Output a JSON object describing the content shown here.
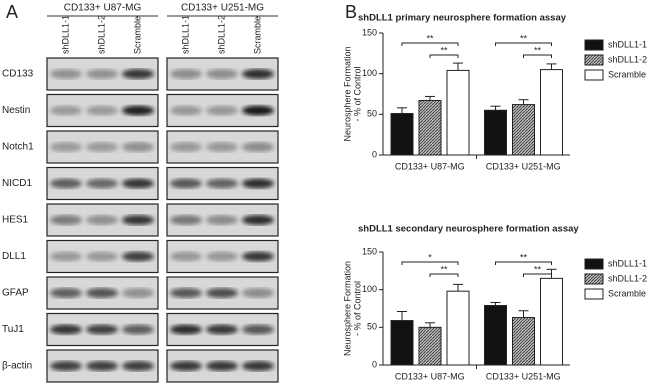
{
  "blot": {
    "letter": "A",
    "cell_lines": [
      "CD133+ U87-MG",
      "CD133+ U251-MG"
    ],
    "lanes": [
      "shDLL1-1",
      "shDLL1-2",
      "Scramble"
    ],
    "proteins": [
      "CD133",
      "Nestin",
      "Notch1",
      "NICD1",
      "HES1",
      "DLL1",
      "GFAP",
      "TuJ1",
      "β-actin"
    ]
  },
  "panel_b": {
    "letter": "B"
  },
  "chart_data": [
    {
      "type": "bar",
      "title": "shDLL1 primary neurosphere formation assay",
      "y_label": [
        "Neurosphere Formation",
        "- % of Control"
      ],
      "categories": [
        "CD133+ U87-MG",
        "CD133+ U251-MG"
      ],
      "series": [
        {
          "name": "shDLL1-1",
          "color": "#111111",
          "values": [
            51,
            55
          ],
          "errors": [
            7,
            5
          ]
        },
        {
          "name": "shDLL1-2",
          "color": "#777777",
          "hatch": true,
          "values": [
            67,
            62
          ],
          "errors": [
            5,
            6
          ]
        },
        {
          "name": "Scramble",
          "color": "#ffffff",
          "values": [
            104,
            105
          ],
          "errors": [
            9,
            7
          ]
        }
      ],
      "annotations": [
        "**",
        "**",
        "**",
        "**"
      ],
      "ylim": [
        0,
        150
      ],
      "yticks": [
        0,
        50,
        100,
        150
      ]
    },
    {
      "type": "bar",
      "title": "shDLL1 secondary neurosphere formation assay",
      "y_label": [
        "Neurosphere Formation",
        "- % of Control"
      ],
      "categories": [
        "CD133+ U87-MG",
        "CD133+ U251-MG"
      ],
      "series": [
        {
          "name": "shDLL1-1",
          "color": "#111111",
          "values": [
            59,
            79
          ],
          "errors": [
            12,
            4
          ]
        },
        {
          "name": "shDLL1-2",
          "color": "#777777",
          "hatch": true,
          "values": [
            50,
            63
          ],
          "errors": [
            6,
            9
          ]
        },
        {
          "name": "Scramble",
          "color": "#ffffff",
          "values": [
            98,
            115
          ],
          "errors": [
            9,
            12
          ]
        }
      ],
      "annotations": [
        "*",
        "**",
        "**",
        "**"
      ],
      "ylim": [
        0,
        150
      ],
      "yticks": [
        0,
        50,
        100,
        150
      ]
    }
  ]
}
